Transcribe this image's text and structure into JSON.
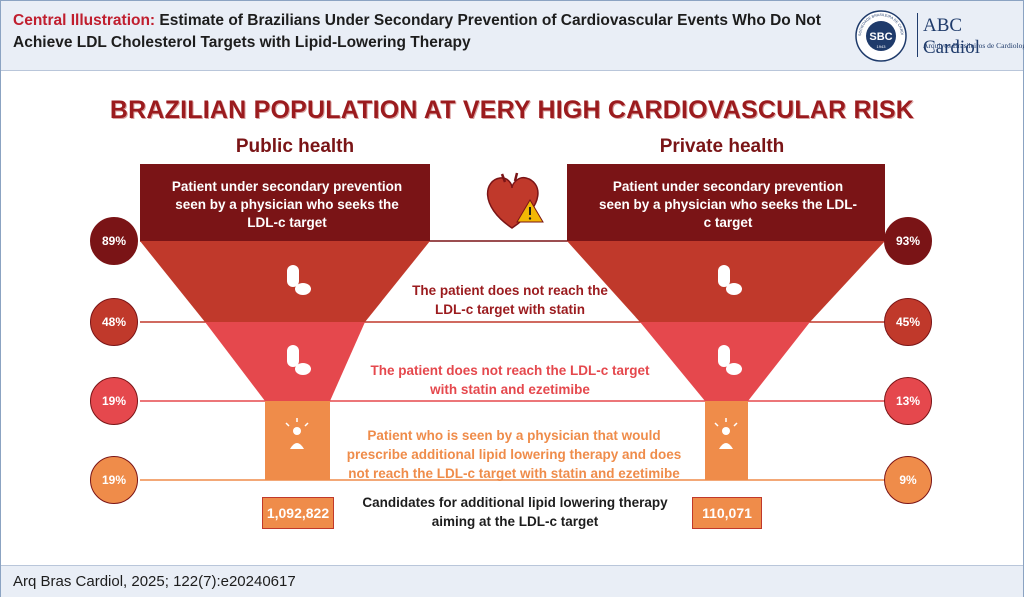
{
  "header": {
    "lead": "Central Illustration:",
    "title": "Estimate of Brazilians Under Secondary Prevention of Cardiovascular Events Who Do Not Achieve LDL Cholesterol Targets with Lipid-Lowering Therapy",
    "logo": {
      "badge": "SBC",
      "ring_text": "SOCIEDADE BRASILEIRA DE CARDIOLOGIA",
      "year": "1943",
      "name": "ABC Cardiol",
      "subtitle": "Arquivos Brasileiros de Cardiologia"
    }
  },
  "main_title": "BRAZILIAN POPULATION AT VERY HIGH CARDIOVASCULAR RISK",
  "public": {
    "title": "Public health",
    "top_text": "Patient under secondary prevention seen by a physician who seeks the LDL-c target",
    "percentages": [
      "89%",
      "48%",
      "19%",
      "19%"
    ],
    "count": "1,092,822"
  },
  "private": {
    "title": "Private health",
    "top_text": "Patient under secondary prevention seen by a physician who seeks the LDL-c target",
    "percentages": [
      "93%",
      "45%",
      "13%",
      "9%"
    ],
    "count": "110,071"
  },
  "steps": {
    "statin": "The patient does not reach the LDL-c target with statin",
    "statin_ezetimibe": "The patient does not reach the LDL-c target with statin and ezetimibe",
    "additional": "Patient who is seen by a physician that would prescribe additional lipid lowering therapy and does not reach the LDL-c target with statin and ezetimibe"
  },
  "candidates": "Candidates for additional lipid lowering therapy aiming at the LDL-c target",
  "footer": "Arq Bras Cardiol, 2025; 122(7):e20240617",
  "colors": {
    "level1": "#7a1416",
    "level2": "#c0392b",
    "level3": "#e5484d",
    "level4": "#ef8c4a",
    "title": "#9b1b1e"
  },
  "icons": [
    "pill-icon",
    "heart-warning-icon",
    "physician-idea-icon"
  ]
}
